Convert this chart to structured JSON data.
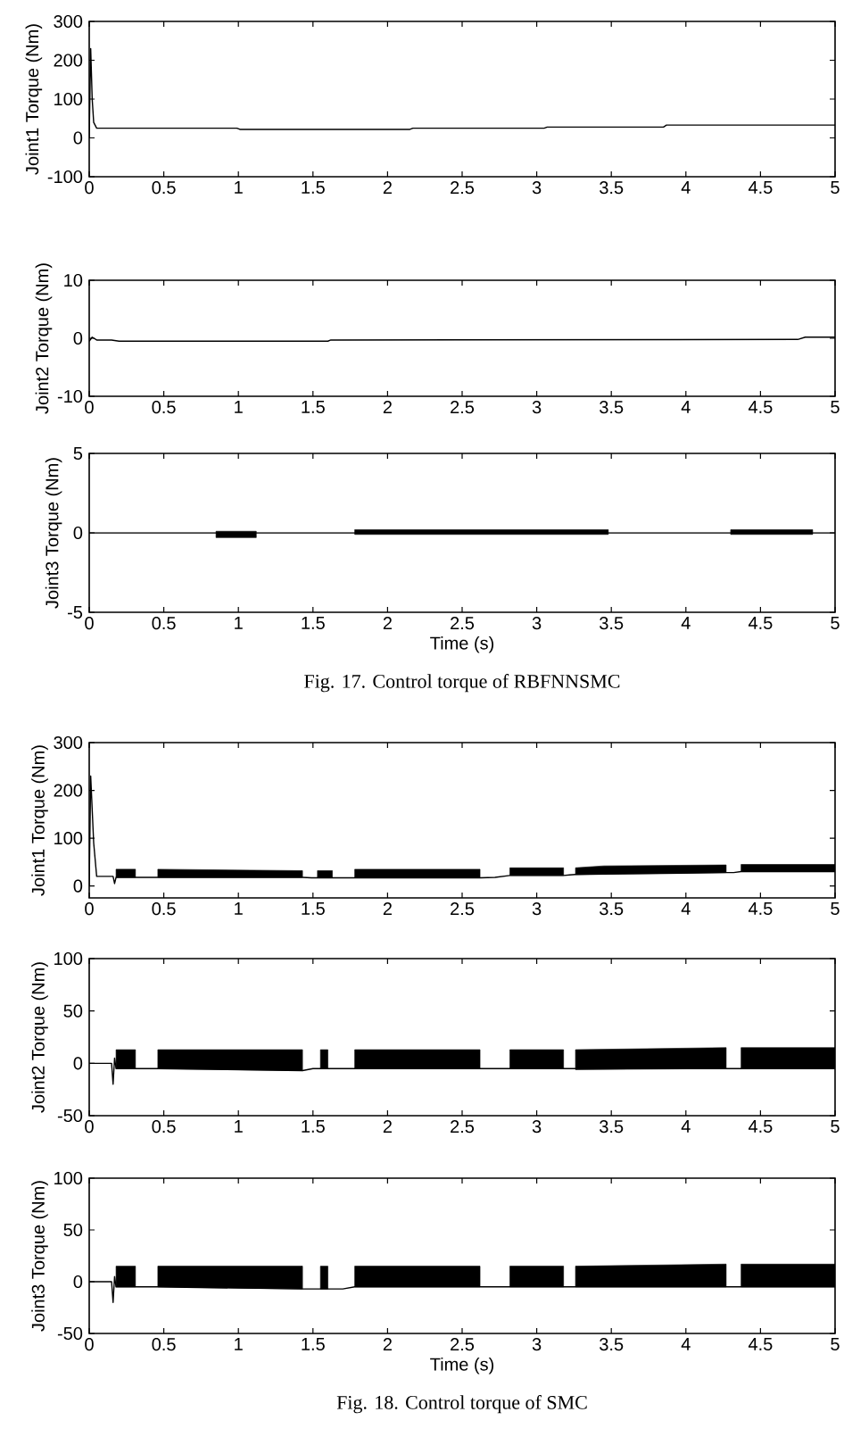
{
  "chart_data": [
    {
      "type": "line",
      "ylabel": "Joint1 Torque (Nm)",
      "xlim": [
        0,
        5
      ],
      "xticks": [
        0,
        0.5,
        1,
        1.5,
        2,
        2.5,
        3,
        3.5,
        4,
        4.5,
        5
      ],
      "ylim": [
        -100,
        300
      ],
      "yticks": [
        -100,
        0,
        100,
        200,
        300
      ],
      "series": [
        {
          "color": "#000000",
          "x": [
            0,
            0.01,
            0.02,
            0.03,
            0.05,
            0.99,
            1.01,
            2.15,
            2.17,
            3.05,
            3.07,
            3.85,
            3.87,
            5
          ],
          "values": [
            0,
            230,
            100,
            40,
            25,
            25,
            22,
            22,
            25,
            25,
            28,
            28,
            33,
            33
          ]
        }
      ]
    },
    {
      "type": "line",
      "ylabel": "Joint2 Torque (Nm)",
      "xlim": [
        0,
        5
      ],
      "xticks": [
        0,
        0.5,
        1,
        1.5,
        2,
        2.5,
        3,
        3.5,
        4,
        4.5,
        5
      ],
      "ylim": [
        -10,
        10
      ],
      "yticks": [
        -10,
        0,
        10
      ],
      "series": [
        {
          "color": "#000000",
          "x": [
            0,
            0.02,
            0.05,
            0.15,
            0.2,
            1.6,
            1.62,
            4.75,
            4.8,
            5
          ],
          "values": [
            -0.5,
            0.2,
            -0.3,
            -0.3,
            -0.5,
            -0.5,
            -0.3,
            -0.2,
            0.2,
            0.2
          ]
        }
      ]
    },
    {
      "type": "line",
      "ylabel": "Joint3 Torque (Nm)",
      "xlabel": "Time (s)",
      "xlim": [
        0,
        5
      ],
      "xticks": [
        0,
        0.5,
        1,
        1.5,
        2,
        2.5,
        3,
        3.5,
        4,
        4.5,
        5
      ],
      "ylim": [
        -5,
        5
      ],
      "yticks": [
        -5,
        0,
        5
      ],
      "annotations": [
        "Fig. 17.  Control torque of RBFNNSMC"
      ],
      "series": [
        {
          "color": "#000000",
          "x": [
            0,
            0.85,
            1.12,
            1.4,
            1.78,
            3.48,
            3.9,
            4.3,
            4.85,
            5
          ],
          "values": [
            0,
            0,
            0,
            0,
            0,
            0,
            0,
            0,
            0,
            0
          ],
          "lower": [
            null,
            -0.3,
            -0.3,
            null,
            -0.1,
            -0.1,
            null,
            -0.1,
            -0.1,
            null
          ],
          "upper": [
            null,
            0.1,
            0.1,
            null,
            0.2,
            0.2,
            null,
            0.2,
            0.2,
            null
          ]
        }
      ]
    },
    {
      "type": "line",
      "ylabel": "Joint1 Torque (Nm)",
      "xlim": [
        0,
        5
      ],
      "xticks": [
        0,
        0.5,
        1,
        1.5,
        2,
        2.5,
        3,
        3.5,
        4,
        4.5,
        5
      ],
      "ylim": [
        -25,
        300
      ],
      "yticks": [
        0,
        100,
        200,
        300
      ],
      "series": [
        {
          "color": "#000000",
          "x": [
            0,
            0.01,
            0.03,
            0.05,
            0.16,
            0.17,
            0.18,
            0.31,
            0.38,
            0.46,
            1.43,
            1.49,
            1.53,
            1.63,
            1.7,
            1.78,
            2.62,
            2.72,
            2.82,
            3.18,
            3.22,
            3.26,
            3.45,
            4.27,
            4.32,
            4.37,
            5
          ],
          "values": [
            0,
            230,
            90,
            20,
            20,
            5,
            18,
            18,
            18,
            18,
            18,
            17,
            17,
            17,
            17,
            17,
            17,
            18,
            22,
            22,
            23,
            24,
            25,
            28,
            28,
            30,
            30
          ],
          "lower": [
            null,
            null,
            null,
            null,
            null,
            null,
            18,
            18,
            null,
            18,
            18,
            null,
            17,
            17,
            null,
            17,
            17,
            null,
            22,
            22,
            null,
            24,
            25,
            28,
            null,
            30,
            30
          ],
          "upper": [
            null,
            null,
            null,
            null,
            null,
            null,
            35,
            35,
            null,
            35,
            32,
            null,
            32,
            32,
            null,
            35,
            35,
            null,
            38,
            38,
            null,
            38,
            42,
            44,
            null,
            45,
            45
          ]
        }
      ]
    },
    {
      "type": "line",
      "ylabel": "Joint2 Torque (Nm)",
      "xlim": [
        0,
        5
      ],
      "xticks": [
        0,
        0.5,
        1,
        1.5,
        2,
        2.5,
        3,
        3.5,
        4,
        4.5,
        5
      ],
      "ylim": [
        -50,
        100
      ],
      "yticks": [
        -50,
        0,
        50,
        100
      ],
      "series": [
        {
          "color": "#000000",
          "x": [
            0,
            0.15,
            0.16,
            0.17,
            0.18,
            0.31,
            0.38,
            0.46,
            1.43,
            1.5,
            1.55,
            1.6,
            1.7,
            1.78,
            2.62,
            2.72,
            2.82,
            3.18,
            3.22,
            3.26,
            4.27,
            4.32,
            4.37,
            5
          ],
          "values": [
            0,
            0,
            -20,
            5,
            -5,
            -5,
            -5,
            -5,
            -7,
            -5,
            -5,
            -5,
            -5,
            -5,
            -5,
            -5,
            -5,
            -5,
            -5,
            -5,
            -5,
            -5,
            -5,
            -5
          ],
          "lower": [
            null,
            null,
            null,
            null,
            -5,
            -5,
            null,
            -5,
            -7,
            null,
            -5,
            -5,
            null,
            -5,
            -5,
            null,
            -5,
            -5,
            null,
            -6,
            -5,
            null,
            -5,
            -5
          ],
          "upper": [
            null,
            null,
            null,
            null,
            13,
            13,
            null,
            13,
            13,
            null,
            13,
            13,
            null,
            13,
            13,
            null,
            13,
            13,
            null,
            13,
            15,
            null,
            15,
            15
          ]
        }
      ]
    },
    {
      "type": "line",
      "ylabel": "Joint3 Torque (Nm)",
      "xlabel": "Time (s)",
      "xlim": [
        0,
        5
      ],
      "xticks": [
        0,
        0.5,
        1,
        1.5,
        2,
        2.5,
        3,
        3.5,
        4,
        4.5,
        5
      ],
      "ylim": [
        -50,
        100
      ],
      "yticks": [
        -50,
        0,
        50,
        100
      ],
      "annotations": [
        "Fig. 18.  Control torque of SMC"
      ],
      "series": [
        {
          "color": "#000000",
          "x": [
            0,
            0.15,
            0.16,
            0.17,
            0.18,
            0.31,
            0.38,
            0.46,
            1.43,
            1.5,
            1.55,
            1.6,
            1.7,
            1.78,
            2.62,
            2.72,
            2.82,
            3.18,
            3.22,
            3.26,
            4.27,
            4.32,
            4.37,
            5
          ],
          "values": [
            0,
            0,
            -20,
            5,
            -5,
            -5,
            -5,
            -5,
            -7,
            -7,
            -7,
            -7,
            -7,
            -5,
            -5,
            -5,
            -5,
            -5,
            -5,
            -5,
            -5,
            -5,
            -5,
            -5
          ],
          "lower": [
            null,
            null,
            null,
            null,
            -5,
            -5,
            null,
            -5,
            -7,
            null,
            -7,
            -7,
            null,
            -5,
            -5,
            null,
            -5,
            -5,
            null,
            -5,
            -5,
            null,
            -5,
            -5
          ],
          "upper": [
            null,
            null,
            null,
            null,
            15,
            15,
            null,
            15,
            15,
            null,
            15,
            15,
            null,
            15,
            15,
            null,
            15,
            15,
            null,
            15,
            17,
            null,
            17,
            17
          ]
        }
      ]
    }
  ]
}
